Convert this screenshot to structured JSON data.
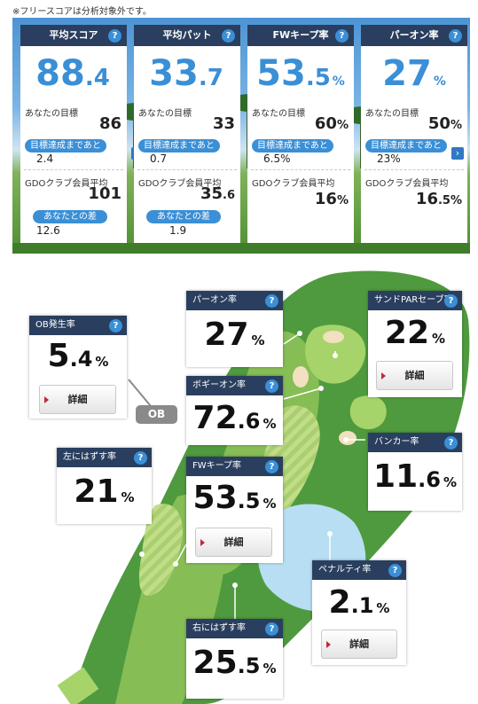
{
  "note": "※フリースコアは分析対象外です。",
  "summary": {
    "help_mark": "?",
    "target_label": "あなたの目標",
    "until_goal_label": "目標達成まであと",
    "club_avg_label": "GDOクラブ会員平均",
    "diff_label": "あなたとの差",
    "arrow": "›",
    "cards": [
      {
        "title": "平均スコア",
        "value_int": "88",
        "value_dec": ".4",
        "unit": "",
        "target": "86",
        "target_unit": "",
        "remaining": "2.4",
        "club_int": "101",
        "club_dec": "",
        "club_unit": "",
        "diff": "12.6"
      },
      {
        "title": "平均パット",
        "value_int": "33",
        "value_dec": ".7",
        "unit": "",
        "target": "33",
        "target_unit": "",
        "remaining": "0.7",
        "club_int": "35",
        "club_dec": ".6",
        "club_unit": "",
        "diff": "1.9"
      },
      {
        "title": "FWキープ率",
        "value_int": "53",
        "value_dec": ".5",
        "unit": "%",
        "target": "60",
        "target_unit": "%",
        "remaining": "6.5%",
        "club_int": "16",
        "club_dec": "",
        "club_unit": "%",
        "diff": ""
      },
      {
        "title": "パーオン率",
        "value_int": "27",
        "value_dec": "",
        "unit": "%",
        "target": "50",
        "target_unit": "%",
        "remaining": "23%",
        "club_int": "16",
        "club_dec": ".5",
        "club_unit": "%",
        "diff": ""
      }
    ]
  },
  "course": {
    "help_mark": "?",
    "detail_label": "詳細",
    "ob_label": "OB",
    "stats": {
      "ob": {
        "title": "OB発生率",
        "int": "5",
        "dec": ".4",
        "unit": "%"
      },
      "left": {
        "title": "左にはずす率",
        "int": "21",
        "dec": "",
        "unit": "%"
      },
      "par_on": {
        "title": "パーオン率",
        "int": "27",
        "dec": "",
        "unit": "%"
      },
      "bogey_on": {
        "title": "ボギーオン率",
        "int": "72",
        "dec": ".6",
        "unit": "%"
      },
      "fw_keep": {
        "title": "FWキープ率",
        "int": "53",
        "dec": ".5",
        "unit": "%"
      },
      "right": {
        "title": "右にはずす率",
        "int": "25",
        "dec": ".5",
        "unit": "%"
      },
      "sand_par": {
        "title": "サンドPARセーブ率",
        "int": "22",
        "dec": "",
        "unit": "%"
      },
      "bunker": {
        "title": "バンカー率",
        "int": "11",
        "dec": ".6",
        "unit": "%"
      },
      "penalty": {
        "title": "ペナルティ率",
        "int": "2",
        "dec": ".1",
        "unit": "%"
      }
    }
  }
}
